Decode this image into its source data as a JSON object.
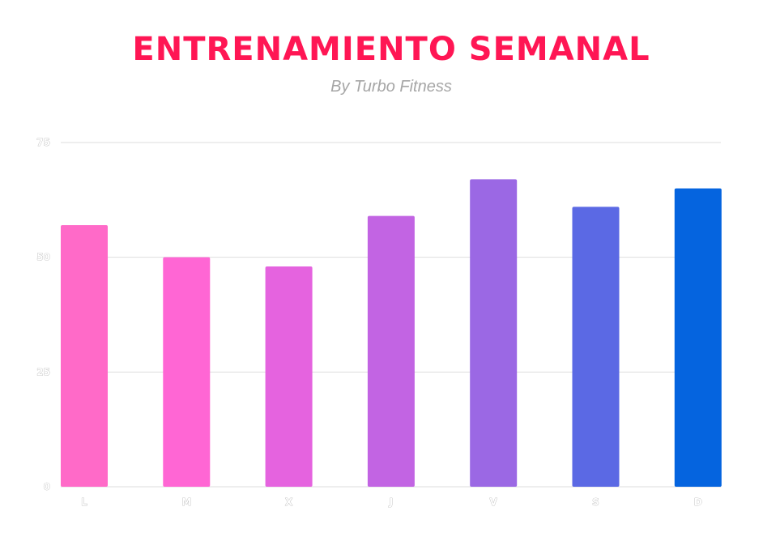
{
  "title": "ENTRENAMIENTO SEMANAL",
  "subtitle": "By Turbo Fitness",
  "colors": {
    "title": "#ff1654",
    "grid": "#dddddd",
    "bars": [
      "#ff6ac8",
      "#ff66d4",
      "#e563df",
      "#c264e3",
      "#9b68e4",
      "#5b69e4",
      "#0564df"
    ]
  },
  "chart_data": {
    "type": "bar",
    "title": "ENTRENAMIENTO SEMANAL",
    "subtitle": "By Turbo Fitness",
    "xlabel": "",
    "ylabel": "",
    "categories": [
      "L",
      "M",
      "X",
      "J",
      "V",
      "S",
      "D"
    ],
    "values": [
      57,
      50,
      48,
      59,
      67,
      61,
      65
    ],
    "ylim": [
      0,
      75
    ],
    "yticks": [
      "0",
      "25",
      "50",
      "75"
    ],
    "grid": true,
    "legend": "none"
  }
}
